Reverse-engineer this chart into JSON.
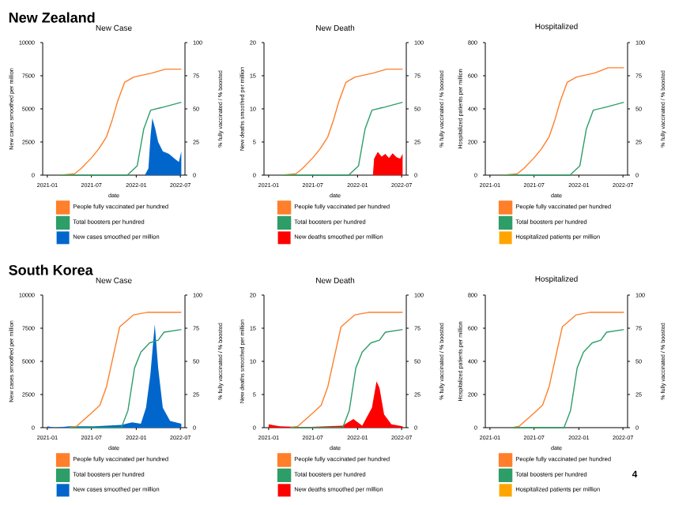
{
  "chart_data": [
    {
      "type": "area",
      "title": "New Case",
      "xlabel": "date",
      "ylabel": "New cases smoothed per million",
      "y2label": "% fully vaccinated / % boosted",
      "annotations": [
        "New Zealand"
      ],
      "legend": "bottom",
      "xlim": [
        "2020-12-13",
        "2022-07-20"
      ],
      "xticks": [
        "2021-01",
        "2021-07",
        "2022-01",
        "2022-07"
      ],
      "ylim": [
        0,
        10000
      ],
      "yticks": [
        0,
        2500,
        5000,
        7500,
        10000
      ],
      "y2lim": [
        0,
        100
      ],
      "y2ticks": [
        0,
        25,
        50,
        75,
        100
      ],
      "series": [
        {
          "name": "People fully vaccinated per hundred",
          "type": "line",
          "axis": "y2",
          "color": "#ff7f2a",
          "x": [
            "2021-02-26",
            "2021-04-23",
            "2021-05-20",
            "2021-07-01",
            "2021-08-01",
            "2021-09-01",
            "2021-09-25",
            "2021-10-17",
            "2021-11-14",
            "2021-12-22",
            "2022-03-06",
            "2022-05-01",
            "2022-07-05"
          ],
          "values": [
            0,
            1,
            5,
            13,
            20,
            29,
            42,
            56,
            70,
            74,
            77,
            80,
            80
          ]
        },
        {
          "name": "Total boosters per hundred",
          "type": "line",
          "axis": "y2",
          "color": "#2e9e68",
          "x": [
            "2021-02-26",
            "2021-11-25",
            "2022-01-05",
            "2022-02-01",
            "2022-03-01",
            "2022-04-15",
            "2022-07-05"
          ],
          "values": [
            0,
            0,
            7,
            35,
            49,
            51,
            55
          ]
        },
        {
          "name": "New cases smoothed per million",
          "color": "#0066cc",
          "x": [
            "2022-02-05",
            "2022-02-20",
            "2022-03-01",
            "2022-03-08",
            "2022-03-20",
            "2022-04-01",
            "2022-04-20",
            "2022-05-15",
            "2022-06-10",
            "2022-06-25",
            "2022-07-05"
          ],
          "values": [
            0,
            500,
            3000,
            4300,
            3500,
            2500,
            1800,
            1600,
            1200,
            1000,
            1800
          ]
        }
      ]
    },
    {
      "type": "area",
      "title": "New Death",
      "xlabel": "date",
      "ylabel": "New deaths smoothed per million",
      "y2label": "% fully vaccinated / % boosted",
      "legend": "bottom",
      "xlim": [
        "2020-12-13",
        "2022-07-20"
      ],
      "xticks": [
        "2021-01",
        "2021-07",
        "2022-01",
        "2022-07"
      ],
      "ylim": [
        0,
        20
      ],
      "yticks": [
        0,
        5,
        10,
        15,
        20
      ],
      "y2lim": [
        0,
        100
      ],
      "y2ticks": [
        0,
        25,
        50,
        75,
        100
      ],
      "series": [
        {
          "name": "People fully vaccinated per hundred",
          "type": "line",
          "axis": "y2",
          "color": "#ff7f2a",
          "x": [
            "2021-02-26",
            "2021-04-23",
            "2021-05-20",
            "2021-07-01",
            "2021-08-01",
            "2021-09-01",
            "2021-09-25",
            "2021-10-17",
            "2021-11-14",
            "2021-12-22",
            "2022-03-06",
            "2022-05-01",
            "2022-07-05"
          ],
          "values": [
            0,
            1,
            5,
            13,
            20,
            29,
            42,
            56,
            70,
            74,
            77,
            80,
            80
          ]
        },
        {
          "name": "Total boosters per hundred",
          "type": "line",
          "axis": "y2",
          "color": "#2e9e68",
          "x": [
            "2021-02-26",
            "2021-11-25",
            "2022-01-05",
            "2022-02-01",
            "2022-03-01",
            "2022-04-15",
            "2022-07-05"
          ],
          "values": [
            0,
            0,
            7,
            35,
            49,
            51,
            55
          ]
        },
        {
          "name": "New deaths smoothed per million",
          "color": "#ff0000",
          "x": [
            "2022-03-05",
            "2022-03-10",
            "2022-03-25",
            "2022-04-10",
            "2022-04-25",
            "2022-05-10",
            "2022-05-25",
            "2022-06-10",
            "2022-06-25",
            "2022-07-05"
          ],
          "values": [
            0,
            2.5,
            3.5,
            2.8,
            3.2,
            2.6,
            3.3,
            2.7,
            2.5,
            3.2
          ]
        }
      ]
    },
    {
      "type": "area",
      "title": "Hospitalized",
      "xlabel": "date",
      "ylabel": "Hospitalized patients per million",
      "y2label": "% fully vaccinated / % boosted",
      "legend": "bottom",
      "xlim": [
        "2020-12-13",
        "2022-07-20"
      ],
      "xticks": [
        "2021-01",
        "2021-07",
        "2022-01",
        "2022-07"
      ],
      "ylim": [
        0,
        800
      ],
      "yticks": [
        0,
        200,
        400,
        600,
        800
      ],
      "y2lim": [
        0,
        100
      ],
      "y2ticks": [
        0,
        25,
        50,
        75,
        100
      ],
      "series": [
        {
          "name": "People fully vaccinated per hundred",
          "type": "line",
          "axis": "y2",
          "color": "#ff7f2a",
          "x": [
            "2021-02-26",
            "2021-04-23",
            "2021-05-20",
            "2021-07-01",
            "2021-08-01",
            "2021-09-01",
            "2021-09-25",
            "2021-10-17",
            "2021-11-14",
            "2021-12-22",
            "2022-03-06",
            "2022-05-01",
            "2022-07-05"
          ],
          "values": [
            0,
            1,
            5,
            13,
            20,
            29,
            42,
            56,
            70,
            74,
            77,
            81,
            81
          ]
        },
        {
          "name": "Total boosters per hundred",
          "type": "line",
          "axis": "y2",
          "color": "#2e9e68",
          "x": [
            "2021-02-26",
            "2021-11-25",
            "2022-01-05",
            "2022-02-01",
            "2022-03-01",
            "2022-04-15",
            "2022-07-05"
          ],
          "values": [
            0,
            0,
            7,
            35,
            49,
            51,
            55
          ]
        },
        {
          "name": "Hospitalized patients per million",
          "color": "#ffa500"
        }
      ]
    },
    {
      "type": "area",
      "title": "New Case",
      "xlabel": "date",
      "ylabel": "New cases smoothed per million",
      "y2label": "% fully vaccinated / % boosted",
      "annotations": [
        "South Korea"
      ],
      "legend": "bottom",
      "xlim": [
        "2020-12-13",
        "2022-07-20"
      ],
      "xticks": [
        "2021-01",
        "2021-07",
        "2022-01",
        "2022-07"
      ],
      "ylim": [
        0,
        10000
      ],
      "yticks": [
        0,
        2500,
        5000,
        7500,
        10000
      ],
      "y2lim": [
        0,
        100
      ],
      "y2ticks": [
        0,
        25,
        50,
        75,
        100
      ],
      "series": [
        {
          "name": "People fully vaccinated per hundred",
          "type": "line",
          "axis": "y2",
          "color": "#ff7f2a",
          "x": [
            "2021-04-01",
            "2021-05-01",
            "2021-07-01",
            "2021-08-05",
            "2021-09-01",
            "2021-10-01",
            "2021-10-25",
            "2021-12-20",
            "2022-02-15",
            "2022-07-05"
          ],
          "values": [
            0,
            1,
            11,
            17,
            31,
            56,
            76,
            85,
            87,
            87
          ]
        },
        {
          "name": "Total boosters per hundred",
          "type": "line",
          "axis": "y2",
          "color": "#2e9e68",
          "x": [
            "2021-04-01",
            "2021-11-01",
            "2021-11-28",
            "2021-12-25",
            "2022-01-20",
            "2022-02-25",
            "2022-04-01",
            "2022-04-25",
            "2022-07-05"
          ],
          "values": [
            0,
            0,
            13,
            45,
            57,
            64,
            66,
            72,
            74
          ]
        },
        {
          "name": "New cases smoothed per million",
          "color": "#0066cc",
          "x": [
            "2021-01-01",
            "2021-02-01",
            "2021-04-01",
            "2021-07-15",
            "2021-11-01",
            "2021-12-15",
            "2022-01-20",
            "2022-02-10",
            "2022-02-28",
            "2022-03-18",
            "2022-04-01",
            "2022-04-20",
            "2022-05-20",
            "2022-07-05"
          ],
          "values": [
            100,
            0,
            100,
            100,
            200,
            400,
            300,
            1500,
            4000,
            7800,
            4500,
            1500,
            500,
            300
          ]
        }
      ]
    },
    {
      "type": "area",
      "title": "New Death",
      "xlabel": "date",
      "ylabel": "New deaths smoothed per million",
      "y2label": "% fully vaccinated / % boosted",
      "legend": "bottom",
      "xlim": [
        "2020-12-13",
        "2022-07-20"
      ],
      "xticks": [
        "2021-01",
        "2021-07",
        "2022-01",
        "2022-07"
      ],
      "ylim": [
        0,
        20
      ],
      "yticks": [
        0,
        5,
        10,
        15,
        20
      ],
      "y2lim": [
        0,
        100
      ],
      "y2ticks": [
        0,
        25,
        50,
        75,
        100
      ],
      "series": [
        {
          "name": "People fully vaccinated per hundred",
          "type": "line",
          "axis": "y2",
          "color": "#ff7f2a",
          "x": [
            "2021-04-01",
            "2021-05-01",
            "2021-07-01",
            "2021-08-05",
            "2021-09-01",
            "2021-10-01",
            "2021-10-25",
            "2021-12-20",
            "2022-02-15",
            "2022-07-05"
          ],
          "values": [
            0,
            1,
            11,
            17,
            31,
            56,
            76,
            85,
            87,
            87
          ]
        },
        {
          "name": "Total boosters per hundred",
          "type": "line",
          "axis": "y2",
          "color": "#2e9e68",
          "x": [
            "2021-04-01",
            "2021-11-01",
            "2021-11-28",
            "2021-12-25",
            "2022-01-20",
            "2022-02-25",
            "2022-04-01",
            "2022-04-25",
            "2022-07-05"
          ],
          "values": [
            0,
            0,
            13,
            45,
            57,
            64,
            66,
            72,
            74
          ]
        },
        {
          "name": "New deaths smoothed per million",
          "color": "#ff0000",
          "x": [
            "2021-01-01",
            "2021-02-15",
            "2021-06-01",
            "2021-11-01",
            "2021-12-15",
            "2022-01-20",
            "2022-03-01",
            "2022-03-20",
            "2022-04-01",
            "2022-04-20",
            "2022-05-20",
            "2022-07-05"
          ],
          "values": [
            0.5,
            0.2,
            0.1,
            0.3,
            1.3,
            0.3,
            3,
            7,
            6,
            2,
            0.5,
            0.2
          ]
        }
      ]
    },
    {
      "type": "area",
      "title": "Hospitalized",
      "xlabel": "date",
      "ylabel": "Hospitalized patients per million",
      "y2label": "% fully vaccinated / % boosted",
      "annotations": [
        "4"
      ],
      "legend": "bottom",
      "xlim": [
        "2020-12-13",
        "2022-07-20"
      ],
      "xticks": [
        "2021-01",
        "2021-07",
        "2022-01",
        "2022-07"
      ],
      "ylim": [
        0,
        800
      ],
      "yticks": [
        0,
        200,
        400,
        600,
        800
      ],
      "y2lim": [
        0,
        100
      ],
      "y2ticks": [
        0,
        25,
        50,
        75,
        100
      ],
      "series": [
        {
          "name": "People fully vaccinated per hundred",
          "type": "line",
          "axis": "y2",
          "color": "#ff7f2a",
          "x": [
            "2021-04-01",
            "2021-05-01",
            "2021-07-01",
            "2021-08-05",
            "2021-09-01",
            "2021-10-01",
            "2021-10-25",
            "2021-12-20",
            "2022-02-15",
            "2022-07-05"
          ],
          "values": [
            0,
            1,
            11,
            17,
            31,
            56,
            76,
            85,
            87,
            87
          ]
        },
        {
          "name": "Total boosters per hundred",
          "type": "line",
          "axis": "y2",
          "color": "#2e9e68",
          "x": [
            "2021-04-01",
            "2021-11-01",
            "2021-11-28",
            "2021-12-25",
            "2022-01-20",
            "2022-02-25",
            "2022-04-01",
            "2022-04-25",
            "2022-07-05"
          ],
          "values": [
            0,
            0,
            13,
            45,
            57,
            64,
            66,
            72,
            74
          ]
        },
        {
          "name": "Hospitalized patients per million",
          "color": "#ffa500"
        }
      ]
    }
  ]
}
